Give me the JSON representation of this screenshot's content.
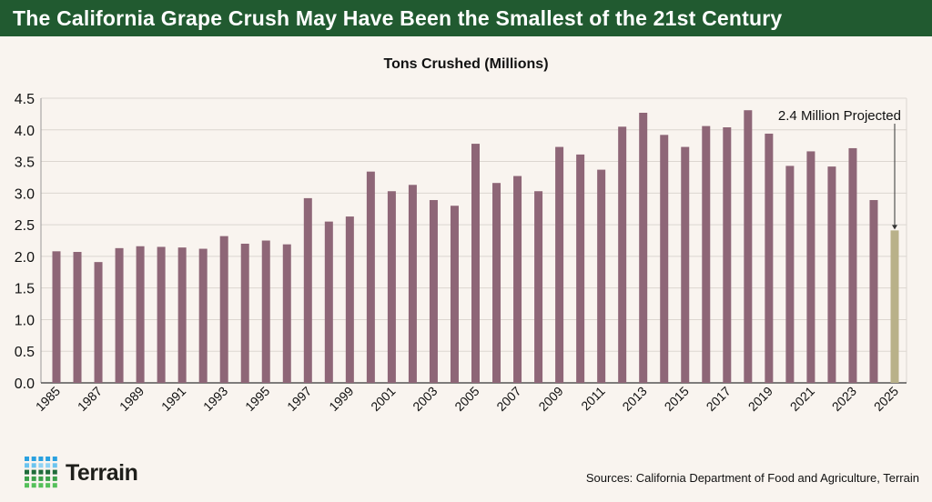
{
  "banner_title": "The California Grape Crush May Have Been the Smallest of the 21st Century",
  "chart_data": {
    "type": "bar",
    "title": "Tons Crushed (Millions)",
    "xlabel": "",
    "ylabel": "",
    "ylim": [
      0,
      4.5
    ],
    "yticks": [
      "0.0",
      "0.5",
      "1.0",
      "1.5",
      "2.0",
      "2.5",
      "3.0",
      "3.5",
      "4.0",
      "4.5"
    ],
    "grid": true,
    "categories": [
      1985,
      1986,
      1987,
      1988,
      1989,
      1990,
      1991,
      1992,
      1993,
      1994,
      1995,
      1996,
      1997,
      1998,
      1999,
      2000,
      2001,
      2002,
      2003,
      2004,
      2005,
      2006,
      2007,
      2008,
      2009,
      2010,
      2011,
      2012,
      2013,
      2014,
      2015,
      2016,
      2017,
      2018,
      2019,
      2020,
      2021,
      2022,
      2023,
      2024,
      2025
    ],
    "values": [
      2.08,
      2.07,
      1.91,
      2.13,
      2.16,
      2.15,
      2.14,
      2.12,
      2.32,
      2.2,
      2.25,
      2.19,
      2.92,
      2.55,
      2.63,
      3.34,
      3.03,
      3.13,
      2.89,
      2.8,
      3.78,
      3.16,
      3.27,
      3.03,
      3.73,
      3.61,
      3.37,
      4.05,
      4.27,
      3.92,
      3.73,
      4.06,
      4.04,
      4.31,
      3.94,
      3.43,
      3.66,
      3.42,
      3.71,
      2.89,
      2.41
    ],
    "bar_color": "#8e6677",
    "projected_color": "#b9b189",
    "annotation": "2.4 Million Projected"
  },
  "logo": {
    "text": "Terrain"
  },
  "sources": "Sources: California Department of Food and Agriculture, Terrain"
}
